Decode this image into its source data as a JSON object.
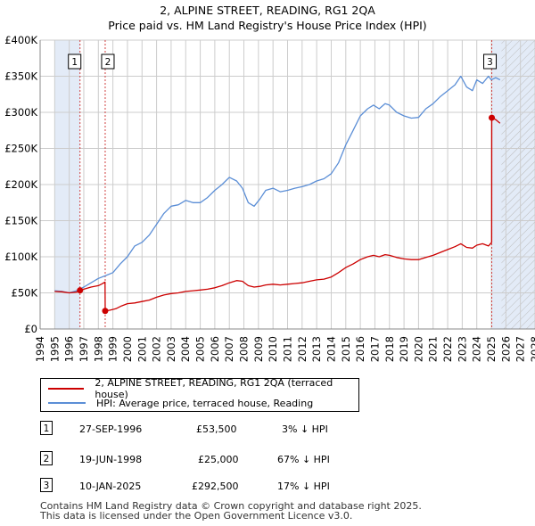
{
  "title_line1": "2, ALPINE STREET, READING, RG1 2QA",
  "title_line2": "Price paid vs. HM Land Registry's House Price Index (HPI)",
  "legend": {
    "property_label": "2, ALPINE STREET, READING, RG1 2QA (terraced house)",
    "hpi_label": "HPI: Average price, terraced house, Reading"
  },
  "colors": {
    "property": "#cc0000",
    "hpi": "#5b8ed6",
    "shade": "#dce6f5",
    "grid": "#cccccc"
  },
  "sales": [
    {
      "num": "1",
      "date": "27-SEP-1996",
      "price": "£53,500",
      "hpi_diff": "3% ↓ HPI"
    },
    {
      "num": "2",
      "date": "19-JUN-1998",
      "price": "£25,000",
      "hpi_diff": "67% ↓ HPI"
    },
    {
      "num": "3",
      "date": "10-JAN-2025",
      "price": "£292,500",
      "hpi_diff": "17% ↓ HPI"
    }
  ],
  "footer": {
    "line1": "Contains HM Land Registry data © Crown copyright and database right 2025.",
    "line2": "This data is licensed under the Open Government Licence v3.0."
  },
  "chart_data": {
    "type": "line",
    "title": "2, ALPINE STREET, READING, RG1 2QA — Price paid vs. HM Land Registry's House Price Index (HPI)",
    "xlabel": "",
    "ylabel": "",
    "xlim": [
      1994,
      2028
    ],
    "ylim": [
      0,
      400000
    ],
    "x_ticks": [
      "1994",
      "1995",
      "1996",
      "1997",
      "1998",
      "1999",
      "2000",
      "2001",
      "2002",
      "2003",
      "2004",
      "2005",
      "2006",
      "2007",
      "2008",
      "2009",
      "2010",
      "2011",
      "2012",
      "2013",
      "2014",
      "2015",
      "2016",
      "2017",
      "2018",
      "2019",
      "2020",
      "2021",
      "2022",
      "2023",
      "2024",
      "2025",
      "2026",
      "2027",
      "2028"
    ],
    "y_ticks": [
      {
        "value": 0,
        "label": "£0"
      },
      {
        "value": 50000,
        "label": "£50K"
      },
      {
        "value": 100000,
        "label": "£100K"
      },
      {
        "value": 150000,
        "label": "£150K"
      },
      {
        "value": 200000,
        "label": "£200K"
      },
      {
        "value": 250000,
        "label": "£250K"
      },
      {
        "value": 300000,
        "label": "£300K"
      },
      {
        "value": 350000,
        "label": "£350K"
      },
      {
        "value": 400000,
        "label": "£400K"
      }
    ],
    "grid": true,
    "shaded_periods": [
      {
        "from": 1995.0,
        "to": 1996.74
      },
      {
        "from": 2025.04,
        "to": 2028.0
      }
    ],
    "sale_markers": [
      {
        "label": "1",
        "x": 1996.74,
        "y": 53500
      },
      {
        "label": "2",
        "x": 1998.47,
        "y": 25000
      },
      {
        "label": "3",
        "x": 2025.03,
        "y": 292500
      }
    ],
    "series": [
      {
        "name": "HPI: Average price, terraced house, Reading",
        "x": [
          1995.0,
          1995.5,
          1996.0,
          1996.5,
          1997.0,
          1997.5,
          1998.0,
          1998.5,
          1999.0,
          1999.5,
          2000.0,
          2000.5,
          2001.0,
          2001.5,
          2002.0,
          2002.5,
          2003.0,
          2003.5,
          2004.0,
          2004.5,
          2005.0,
          2005.5,
          2006.0,
          2006.5,
          2007.0,
          2007.5,
          2007.9,
          2008.3,
          2008.7,
          2009.1,
          2009.5,
          2010.0,
          2010.5,
          2011.0,
          2011.5,
          2012.0,
          2012.5,
          2013.0,
          2013.5,
          2014.0,
          2014.5,
          2015.0,
          2015.5,
          2016.0,
          2016.5,
          2016.9,
          2017.3,
          2017.7,
          2018.0,
          2018.5,
          2019.0,
          2019.5,
          2020.0,
          2020.5,
          2021.0,
          2021.5,
          2022.0,
          2022.5,
          2022.9,
          2023.3,
          2023.7,
          2024.0,
          2024.4,
          2024.8,
          2025.0,
          2025.3,
          2025.6
        ],
        "values": [
          53000,
          52000,
          50000,
          53000,
          58000,
          64000,
          70000,
          74000,
          78000,
          90000,
          100000,
          115000,
          120000,
          130000,
          145000,
          160000,
          170000,
          172000,
          178000,
          175000,
          175000,
          182000,
          192000,
          200000,
          210000,
          205000,
          195000,
          175000,
          170000,
          180000,
          192000,
          195000,
          190000,
          192000,
          195000,
          197000,
          200000,
          205000,
          208000,
          215000,
          230000,
          255000,
          275000,
          295000,
          305000,
          310000,
          305000,
          312000,
          310000,
          300000,
          295000,
          292000,
          293000,
          305000,
          312000,
          322000,
          330000,
          338000,
          350000,
          335000,
          330000,
          345000,
          340000,
          350000,
          345000,
          348000,
          345000
        ]
      },
      {
        "name": "2, ALPINE STREET, READING, RG1 2QA (terraced house)",
        "x": [
          1995.0,
          1995.5,
          1996.0,
          1996.5,
          1996.74,
          1997.0,
          1997.5,
          1998.0,
          1998.2,
          1998.46,
          1998.47,
          1998.8,
          1999.2,
          1999.6,
          2000.0,
          2000.5,
          2001.0,
          2001.5,
          2002.0,
          2002.5,
          2003.0,
          2003.5,
          2004.0,
          2004.5,
          2005.0,
          2005.5,
          2006.0,
          2006.5,
          2007.0,
          2007.5,
          2007.9,
          2008.3,
          2008.7,
          2009.1,
          2009.5,
          2010.0,
          2010.5,
          2011.0,
          2011.5,
          2012.0,
          2012.5,
          2013.0,
          2013.5,
          2014.0,
          2014.5,
          2015.0,
          2015.5,
          2016.0,
          2016.5,
          2016.9,
          2017.3,
          2017.7,
          2018.0,
          2018.5,
          2019.0,
          2019.5,
          2020.0,
          2020.5,
          2021.0,
          2021.5,
          2022.0,
          2022.5,
          2022.9,
          2023.3,
          2023.7,
          2024.0,
          2024.4,
          2024.8,
          2025.02,
          2025.03,
          2025.3,
          2025.6
        ],
        "values": [
          52000,
          51500,
          50000,
          51000,
          53500,
          55000,
          58000,
          60000,
          62000,
          65000,
          25000,
          26000,
          28000,
          32000,
          35000,
          36000,
          38000,
          40000,
          44000,
          47000,
          49000,
          50000,
          52000,
          53000,
          54000,
          55000,
          57000,
          60000,
          64000,
          67000,
          66000,
          60000,
          58000,
          59000,
          61000,
          62000,
          61000,
          62000,
          63000,
          64000,
          66000,
          68000,
          69000,
          72000,
          78000,
          85000,
          90000,
          96000,
          100000,
          102000,
          100000,
          103000,
          102000,
          99000,
          97000,
          96000,
          96000,
          99000,
          102000,
          106000,
          110000,
          114000,
          118000,
          113000,
          112000,
          116000,
          118000,
          115000,
          120000,
          292500,
          290000,
          285000
        ]
      }
    ]
  }
}
